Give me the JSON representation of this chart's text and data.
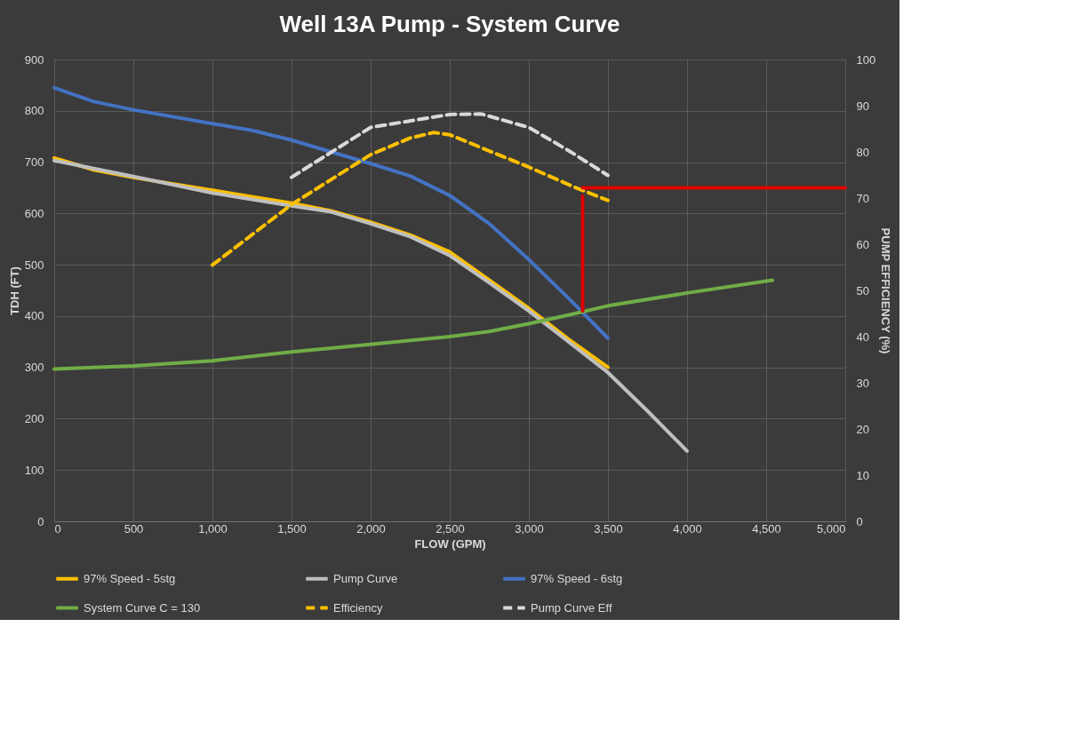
{
  "chart_data": {
    "type": "line",
    "title": "Well 13A Pump - System Curve",
    "xlabel": "FLOW (GPM)",
    "ylabel": "TDH (FT)",
    "y2label": "PUMP EFFICIENCY (%)",
    "xlim": [
      0,
      5000
    ],
    "xticks": [
      {
        "value": 0,
        "label": "0"
      },
      {
        "value": 500,
        "label": "500"
      },
      {
        "value": 1000,
        "label": "1,000"
      },
      {
        "value": 1500,
        "label": "1,500"
      },
      {
        "value": 2000,
        "label": "2,000"
      },
      {
        "value": 2500,
        "label": "2,500"
      },
      {
        "value": 3000,
        "label": "3,000"
      },
      {
        "value": 3500,
        "label": "3,500"
      },
      {
        "value": 4000,
        "label": "4,000"
      },
      {
        "value": 4500,
        "label": "4,500"
      },
      {
        "value": 5000,
        "label": "5,000"
      }
    ],
    "ylim": [
      0,
      900
    ],
    "yticks": [
      0,
      100,
      200,
      300,
      400,
      500,
      600,
      700,
      800,
      900
    ],
    "y2lim": [
      0,
      100
    ],
    "y2ticks": [
      0,
      10,
      20,
      30,
      40,
      50,
      60,
      70,
      80,
      90,
      100
    ],
    "grid": true,
    "legend": "bottom",
    "marker": "none",
    "series": [
      {
        "name": "97% Speed - 5stg",
        "color": "#ffc000",
        "line_style": "solid",
        "x": [
          0,
          250,
          500,
          1000,
          1500,
          1750,
          2000,
          2250,
          2500,
          2750,
          3000,
          3250,
          3500
        ],
        "values": [
          708,
          685,
          670,
          645,
          620,
          605,
          583,
          558,
          525,
          470,
          415,
          355,
          300
        ]
      },
      {
        "name": "Pump Curve",
        "color": "#bfbfbf",
        "line_style": "solid",
        "x": [
          0,
          500,
          1000,
          1500,
          1750,
          2000,
          2250,
          2500,
          2750,
          3000,
          3250,
          3500,
          3750,
          4000
        ],
        "values": [
          703,
          672,
          640,
          615,
          603,
          580,
          555,
          518,
          465,
          410,
          350,
          290,
          215,
          137
        ]
      },
      {
        "name": "97% Speed - 6stg",
        "color": "#4472c4",
        "line_style": "solid",
        "x": [
          0,
          250,
          500,
          1000,
          1250,
          1500,
          1750,
          2000,
          2250,
          2500,
          2750,
          3000,
          3250,
          3500
        ],
        "values": [
          845,
          818,
          802,
          775,
          762,
          743,
          720,
          697,
          673,
          635,
          580,
          510,
          435,
          357
        ]
      },
      {
        "name": "System Curve C = 130",
        "color": "#70ad47",
        "line_style": "solid",
        "x": [
          0,
          500,
          1000,
          1500,
          2000,
          2500,
          2750,
          3000,
          3250,
          3500,
          4000,
          4540
        ],
        "values": [
          297,
          303,
          313,
          330,
          345,
          360,
          370,
          385,
          402,
          420,
          445,
          470
        ]
      },
      {
        "name": "Efficiency",
        "color": "#ffc000",
        "line_style": "dashed",
        "axis": "y2",
        "x": [
          1000,
          1500,
          2000,
          2250,
          2400,
          2500,
          3000,
          3300,
          3500
        ],
        "values": [
          55.5,
          68.6,
          79.4,
          83,
          84.2,
          83.7,
          76.7,
          72.2,
          69.5
        ]
      },
      {
        "name": "Pump Curve Eff",
        "color": "#d9d9d9",
        "line_style": "dashed",
        "axis": "y2",
        "x": [
          1500,
          2000,
          2500,
          2700,
          3000,
          3250,
          3500
        ],
        "values": [
          74.5,
          85.3,
          88.1,
          88.2,
          85.3,
          80.3,
          74.9
        ]
      },
      {
        "color": "#e00000",
        "line_style": "solid",
        "axis": "y2",
        "x": [
          3340,
          3340
        ],
        "values": [
          45.6,
          70.4
        ]
      },
      {
        "color": "#e00000",
        "line_style": "solid",
        "axis": "y2",
        "x": [
          3340,
          5000
        ],
        "values": [
          72.2,
          72.2
        ]
      }
    ]
  }
}
